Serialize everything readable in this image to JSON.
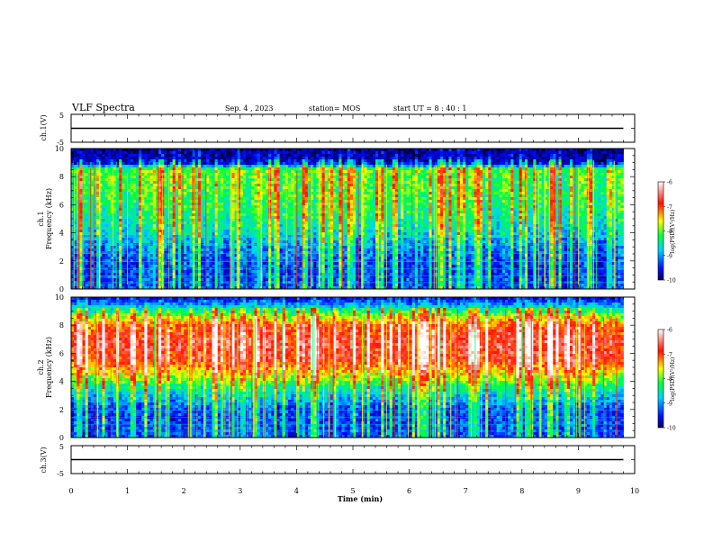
{
  "header": {
    "title": "VLF Spectra",
    "date": "Sep. 4 , 2023",
    "station": "station= MOS",
    "start": "start  UT =  8 : 40 : 1"
  },
  "chart_data": [
    {
      "type": "line",
      "id": "ch1-waveform",
      "ylabel": "ch.1(V)",
      "ylim": [
        -5,
        5
      ],
      "yticks": [
        "5",
        "-5"
      ],
      "x": [
        0,
        9.8
      ],
      "series": [
        {
          "values": [
            0,
            0
          ]
        }
      ]
    },
    {
      "type": "heatmap",
      "id": "ch1-spectrogram",
      "ylabel": "ch.1\nFrequency (kHz)",
      "ylim": [
        0,
        10
      ],
      "xlim": [
        0,
        10
      ],
      "data_xmax": 9.8,
      "yticks": [
        "0",
        "2",
        "4",
        "6",
        "8",
        "10"
      ],
      "colorbar": {
        "label": "log(PSD)(V²/Hz)",
        "range": [
          -10,
          -6
        ],
        "ticks": [
          "-6",
          "-7",
          "-8",
          "-9",
          "-10"
        ]
      },
      "intensity_profile_khz": [
        [
          0,
          -9.4
        ],
        [
          1.5,
          -9.5
        ],
        [
          3,
          -9.2
        ],
        [
          4,
          -8.8
        ],
        [
          5.5,
          -8.5
        ],
        [
          7,
          -8.3
        ],
        [
          8.5,
          -8.2
        ],
        [
          9,
          -9.8
        ],
        [
          10,
          -10
        ]
      ]
    },
    {
      "type": "heatmap",
      "id": "ch2-spectrogram",
      "ylabel": "ch.2\nFrequency (kHz)",
      "ylim": [
        0,
        10
      ],
      "xlim": [
        0,
        10
      ],
      "data_xmax": 9.8,
      "yticks": [
        "0",
        "2",
        "4",
        "6",
        "8",
        "10"
      ],
      "colorbar": {
        "label": "log(PSD)(V²/Hz)",
        "range": [
          -10,
          -6
        ],
        "ticks": [
          "-6",
          "-7",
          "-8",
          "-9",
          "-10"
        ]
      },
      "intensity_profile_khz": [
        [
          0,
          -9.4
        ],
        [
          2,
          -9.4
        ],
        [
          3.5,
          -8.6
        ],
        [
          4.5,
          -7.8
        ],
        [
          5.5,
          -7.1
        ],
        [
          6.8,
          -6.9
        ],
        [
          8,
          -7.3
        ],
        [
          9,
          -8.4
        ],
        [
          9.6,
          -9.3
        ],
        [
          10,
          -9.7
        ]
      ]
    },
    {
      "type": "line",
      "id": "ch3-waveform",
      "ylabel": "ch.3(V)",
      "ylim": [
        -5,
        5
      ],
      "yticks": [
        "5",
        "-5"
      ],
      "x": [
        0,
        9.8
      ],
      "xlabel": "Time (min)",
      "xticks": [
        "0",
        "1",
        "2",
        "3",
        "4",
        "5",
        "6",
        "7",
        "8",
        "9",
        "10"
      ],
      "series": [
        {
          "values": [
            0,
            0
          ]
        }
      ]
    }
  ]
}
